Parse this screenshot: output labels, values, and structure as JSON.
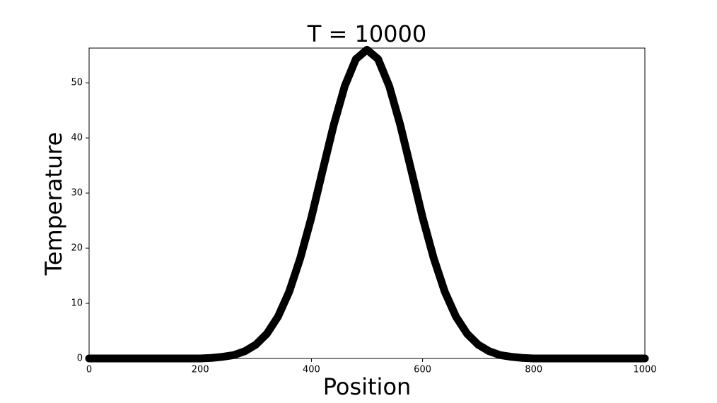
{
  "chart_data": {
    "type": "line",
    "title": "T = 10000",
    "x_label": "Position",
    "y_label": "Temperature",
    "x": [
      0,
      20,
      40,
      60,
      80,
      100,
      120,
      140,
      160,
      180,
      200,
      220,
      240,
      260,
      280,
      300,
      320,
      340,
      360,
      380,
      400,
      420,
      440,
      460,
      480,
      500,
      520,
      540,
      560,
      580,
      600,
      620,
      640,
      660,
      680,
      700,
      720,
      740,
      760,
      780,
      800,
      820,
      840,
      860,
      880,
      900,
      920,
      940,
      960,
      980,
      1000
    ],
    "series": [
      {
        "color": "#000000",
        "values": [
          0,
          0,
          0,
          0,
          0,
          0,
          0,
          0,
          0,
          0,
          0,
          0.1,
          0.3,
          0.6,
          1.3,
          2.5,
          4.5,
          7.6,
          12.1,
          18.2,
          25.6,
          34.0,
          42.3,
          49.4,
          54.3,
          56,
          54.3,
          49.4,
          42.3,
          34.0,
          25.6,
          18.2,
          12.1,
          7.6,
          4.5,
          2.5,
          1.3,
          0.6,
          0.3,
          0.1,
          0,
          0,
          0,
          0,
          0,
          0,
          0,
          0,
          0,
          0,
          0
        ]
      }
    ],
    "xlim": [
      0,
      1000
    ],
    "xticks": [
      0,
      200,
      400,
      600,
      800,
      1000
    ],
    "ylim": [
      0,
      56.3
    ],
    "yticks": [
      0,
      10,
      20,
      30,
      40,
      50
    ]
  }
}
